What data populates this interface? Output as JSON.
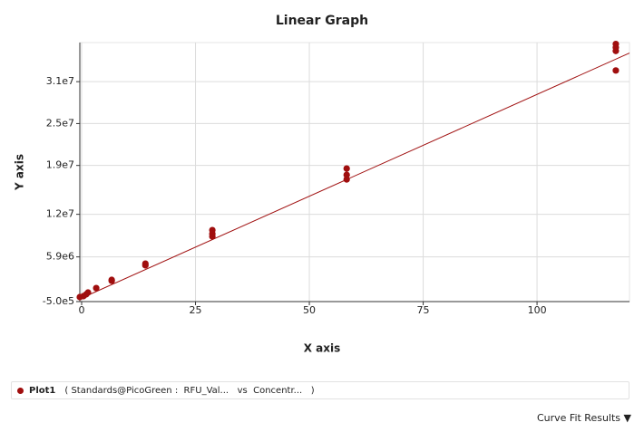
{
  "chart_data": {
    "type": "scatter",
    "title": "Linear Graph",
    "x_label": "X axis",
    "y_label": "Y axis",
    "xlim": [
      -0.4,
      120.3
    ],
    "ylim": [
      -500000,
      36600000
    ],
    "xticks": [
      0,
      25,
      50,
      75,
      100
    ],
    "yticks": [
      {
        "value": -500000,
        "label": "-5.0e5"
      },
      {
        "value": 5900000,
        "label": "5.9e6"
      },
      {
        "value": 12000000,
        "label": "1.2e7"
      },
      {
        "value": 19000000,
        "label": "1.9e7"
      },
      {
        "value": 25000000,
        "label": "2.5e7"
      },
      {
        "value": 31000000,
        "label": "3.1e7"
      }
    ],
    "grid": true,
    "series": [
      {
        "name": "Plot1",
        "description": "( Standards@PicoGreen :  RFU_Val...   vs  Concentr...   )",
        "color": "#a00e0e",
        "x": [
          -0.4,
          0.4,
          1.0,
          1.4,
          3.2,
          6.6,
          6.6,
          14.0,
          14.0,
          28.7,
          28.7,
          28.7,
          58.2,
          58.2,
          58.2,
          117.3,
          117.3,
          117.3,
          117.3
        ],
        "values": [
          148000,
          278000,
          537000,
          796000,
          1440000,
          2480000,
          2610000,
          4690000,
          4940000,
          8830000,
          9220000,
          9740000,
          18560000,
          17650000,
          17000000,
          36400000,
          35900000,
          35400000,
          32600000
        ]
      }
    ],
    "fit": {
      "color": "#a01010",
      "x": [
        -0.4,
        120.3
      ],
      "values": [
        -111000,
        35100000
      ]
    },
    "curve_fit_label": "Curve Fit Results"
  }
}
